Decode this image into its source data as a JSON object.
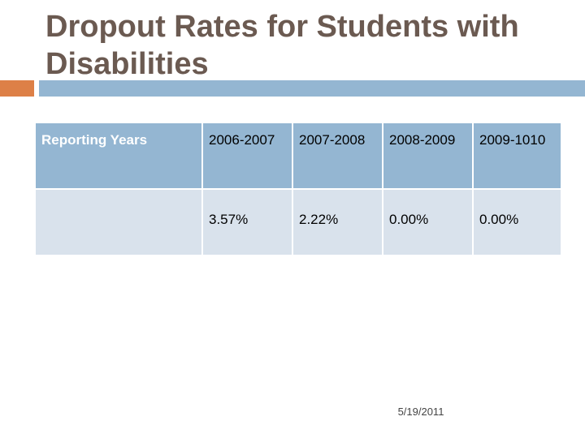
{
  "slide": {
    "title": "Dropout Rates for Students with Disabilities",
    "date": "5/19/2011"
  },
  "table": {
    "row_header": "Reporting Years",
    "years": [
      "2006-2007",
      "2007-2008",
      "2008-2009",
      "2009-1010"
    ],
    "row_label": "",
    "rates": [
      "3.57%",
      "2.22%",
      "0.00%",
      "0.00%"
    ]
  },
  "colors": {
    "title_text": "#6b5a51",
    "accent": "#dd8047",
    "header_fill": "#94b6d2",
    "row_fill": "#d9e2ec"
  }
}
